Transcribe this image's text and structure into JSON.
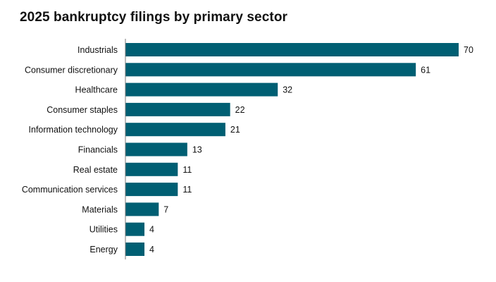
{
  "chart_data": {
    "type": "bar",
    "orientation": "horizontal",
    "title": "2025 bankruptcy filings by primary sector",
    "xlabel": "",
    "ylabel": "",
    "categories": [
      "Industrials",
      "Consumer discretionary",
      "Healthcare",
      "Consumer staples",
      "Information technology",
      "Financials",
      "Real estate",
      "Communication services",
      "Materials",
      "Utilities",
      "Energy"
    ],
    "values": [
      70,
      61,
      32,
      22,
      21,
      13,
      11,
      11,
      7,
      4,
      4
    ],
    "xlim": [
      0,
      70
    ],
    "grid": false,
    "legend": "none",
    "bar_color": "#005F73"
  }
}
